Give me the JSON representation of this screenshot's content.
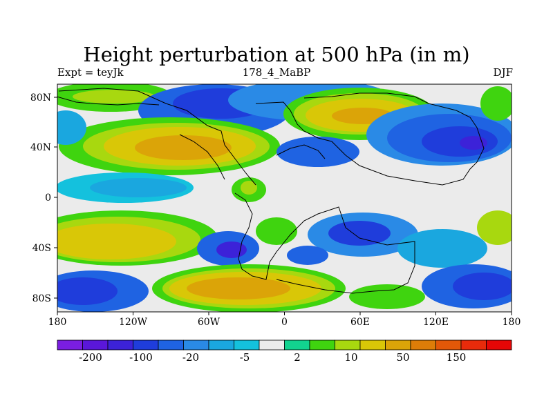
{
  "title": "Height perturbation at 500 hPa (in m)",
  "subtitle_left": "Expt = teyJk",
  "subtitle_center": "178_4_MaBP",
  "subtitle_right": "DJF",
  "map": {
    "projection": "cylindrical-equidistant",
    "x_tick_labels": [
      "180",
      "120W",
      "60W",
      "0",
      "60E",
      "120E",
      "180"
    ],
    "y_tick_labels": [
      "80N",
      "40N",
      "0",
      "40S",
      "80S"
    ],
    "lon_range": [
      -180,
      180
    ],
    "lat_range": [
      -90,
      90
    ]
  },
  "colorbar": {
    "colors": [
      "#7a1ee0",
      "#5a17d9",
      "#3c22d8",
      "#1f3ddb",
      "#1f63e2",
      "#2a8ae6",
      "#1aa7df",
      "#14c1dd",
      "#ebebeb",
      "#12d38f",
      "#3fd40f",
      "#a8d80f",
      "#d9c707",
      "#dba408",
      "#dd7d08",
      "#e25808",
      "#e82b0b",
      "#e50606"
    ],
    "labels": [
      "-200",
      "-100",
      "-20",
      "-5",
      "2",
      "10",
      "50",
      "150"
    ]
  }
}
